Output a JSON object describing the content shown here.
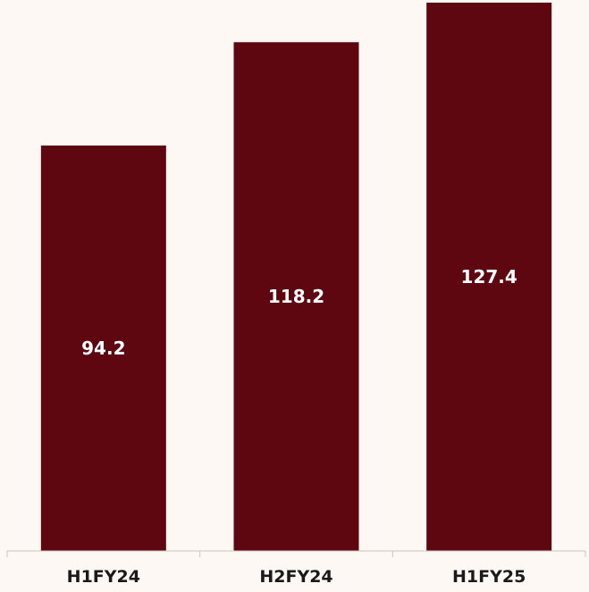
{
  "chart_data": {
    "type": "bar",
    "categories": [
      "H1FY24",
      "H2FY24",
      "H1FY25"
    ],
    "values": [
      94.2,
      118.2,
      127.4
    ],
    "title": "",
    "xlabel": "",
    "ylabel": "",
    "ylim": [
      0,
      130
    ],
    "grid": false,
    "legend": "none",
    "data_labels": [
      "94.2",
      "118.2",
      "127.4"
    ],
    "data_label_position": "inside-middle",
    "colors": {
      "background": "#fdf8f3",
      "bar": "#5e0710",
      "bar_label": "#ffffff",
      "tick_label": "#1a1a1a",
      "axis": "#c8c3be"
    }
  }
}
